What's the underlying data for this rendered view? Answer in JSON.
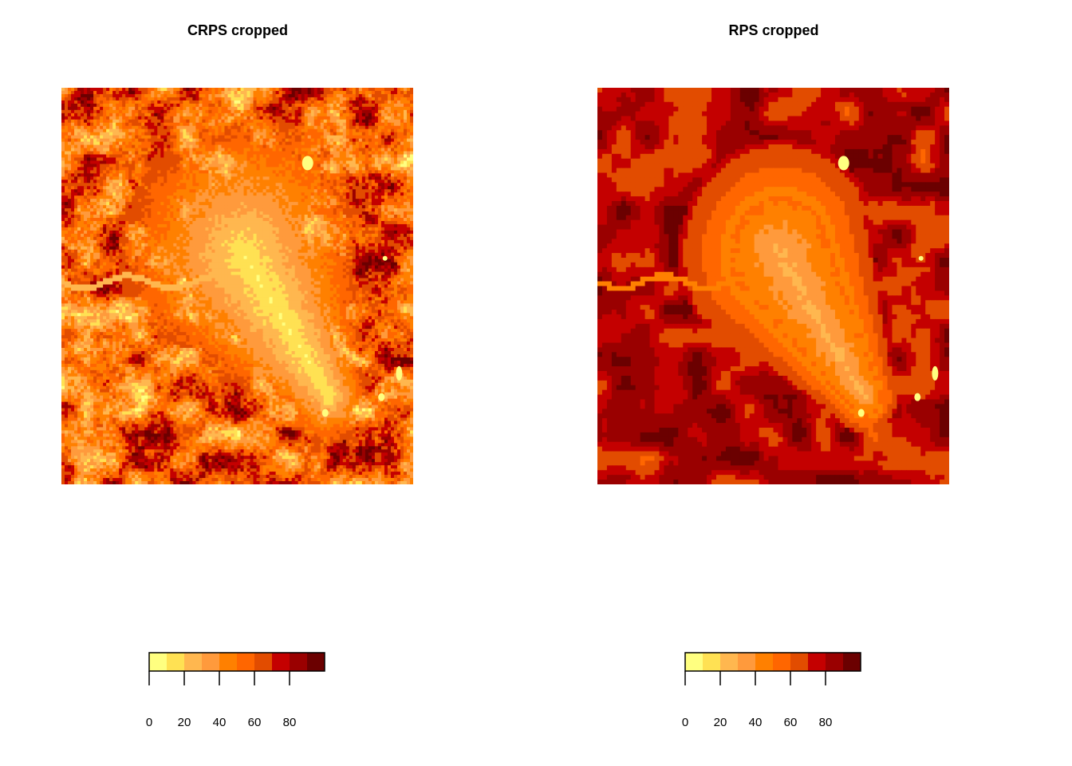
{
  "chart_data": [
    {
      "type": "heatmap",
      "title": "CRPS cropped",
      "legend": {
        "ticks": [
          0,
          20,
          40,
          60,
          80
        ],
        "range": [
          0,
          100
        ],
        "colors": [
          "#FFFF80",
          "#FFE153",
          "#FFB74F",
          "#FF9A3C",
          "#FF8000",
          "#FF6600",
          "#E24C00",
          "#C40000",
          "#9A0000",
          "#6B0000"
        ]
      }
    },
    {
      "type": "heatmap",
      "title": "RPS cropped",
      "legend": {
        "ticks": [
          0,
          20,
          40,
          60,
          80
        ],
        "range": [
          0,
          100
        ],
        "colors": [
          "#FFFF80",
          "#FFE153",
          "#FFB74F",
          "#FF9A3C",
          "#FF8000",
          "#FF6600",
          "#E24C00",
          "#C40000",
          "#9A0000",
          "#6B0000"
        ]
      }
    }
  ]
}
